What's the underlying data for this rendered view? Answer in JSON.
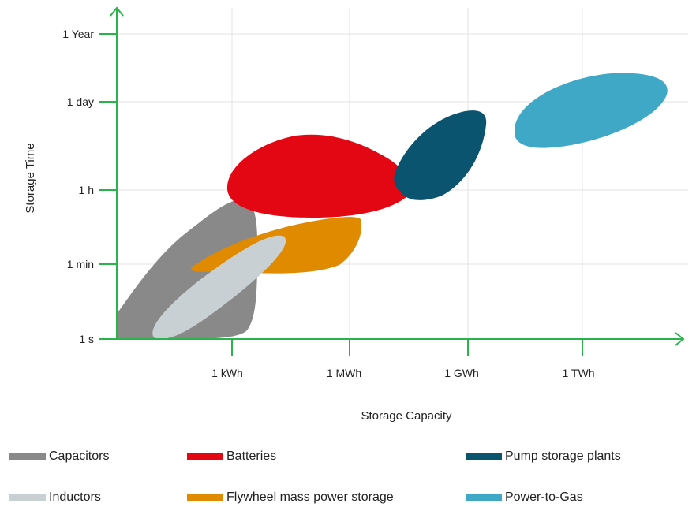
{
  "chart_data": {
    "type": "area",
    "title": "",
    "xlabel": "Storage Capacity",
    "ylabel": "Storage Time",
    "x_ticks": [
      "1 kWh",
      "1 MWh",
      "1 GWh",
      "1 TWh"
    ],
    "y_ticks": [
      "1 s",
      "1 min",
      "1 h",
      "1 day",
      "1 Year"
    ],
    "grid": true,
    "legend_position": "bottom",
    "series": [
      {
        "name": "Capacitors",
        "color": "#898989",
        "capacity_range": [
          "< 1 kWh",
          "1 kWh"
        ],
        "time_range": [
          "1 s",
          "1 h"
        ]
      },
      {
        "name": "Inductors",
        "color": "#c9d0d3",
        "capacity_range": [
          "< 1 kWh",
          "< 1 MWh"
        ],
        "time_range": [
          "1 s",
          "< 1 h"
        ]
      },
      {
        "name": "Batteries",
        "color": "#e30613",
        "capacity_range": [
          "< 1 kWh",
          "< 1 GWh"
        ],
        "time_range": [
          "< 1 h",
          "< 1 day"
        ]
      },
      {
        "name": "Flywheel mass power storage",
        "color": "#e08a00",
        "capacity_range": [
          "< 1 kWh",
          "1 MWh"
        ],
        "time_range": [
          "1 min",
          "< 1 h"
        ]
      },
      {
        "name": "Pump storage plants",
        "color": "#0b5470",
        "capacity_range": [
          "< 1 GWh",
          "1 GWh"
        ],
        "time_range": [
          "< 1 h",
          "< 1 day"
        ]
      },
      {
        "name": "Power-to-Gas",
        "color": "#3fa8c6",
        "capacity_range": [
          "< 1 TWh",
          "> 1 TWh"
        ],
        "time_range": [
          "< 1 day",
          "1 day"
        ]
      }
    ]
  }
}
